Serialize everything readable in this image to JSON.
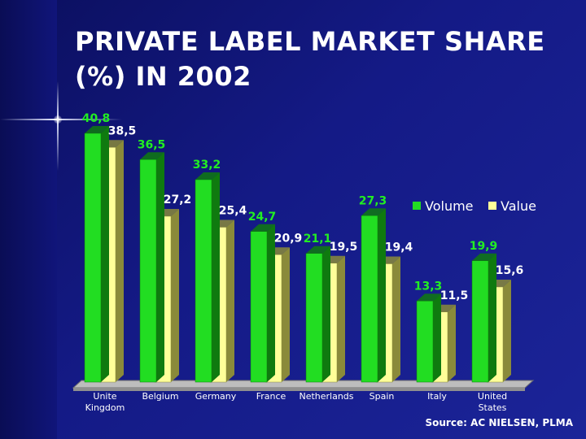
{
  "title_lines": [
    "PRIVATE LABEL MARKET SHARE",
    "(%) IN 2002"
  ],
  "source": "Source: AC NIELSEN, PLMA",
  "colors": {
    "volume": "#22dd22",
    "volume_dark": "#0f7a0f",
    "value": "#ffff99",
    "value_dark": "#8a8a3a",
    "volume_label": "#22ee22",
    "value_label": "#ffffff"
  },
  "chart_data": {
    "type": "bar",
    "title": "PRIVATE LABEL MARKET SHARE (%) IN 2002",
    "categories": [
      [
        "Unite",
        "Kingdom"
      ],
      [
        "Belgium"
      ],
      [
        "Germany"
      ],
      [
        "France"
      ],
      [
        "Netherlands"
      ],
      [
        "Spain"
      ],
      [
        "Italy"
      ],
      [
        "United",
        "States"
      ]
    ],
    "series": [
      {
        "name": "Volume",
        "values": [
          40.8,
          36.5,
          33.2,
          24.7,
          21.1,
          27.3,
          13.3,
          19.9
        ],
        "labels": [
          "40,8",
          "36,5",
          "33,2",
          "24,7",
          "21,1",
          "27,3",
          "13,3",
          "19,9"
        ]
      },
      {
        "name": "Value",
        "values": [
          38.5,
          27.2,
          25.4,
          20.9,
          19.5,
          19.4,
          11.5,
          15.6
        ],
        "labels": [
          "38,5",
          "27,2",
          "25,4",
          "20,9",
          "19,5",
          "19,4",
          "11,5",
          "15,6"
        ]
      }
    ],
    "ylim": [
      0,
      45
    ],
    "legend": "top-right",
    "grid": false,
    "xlabel": "",
    "ylabel": ""
  }
}
